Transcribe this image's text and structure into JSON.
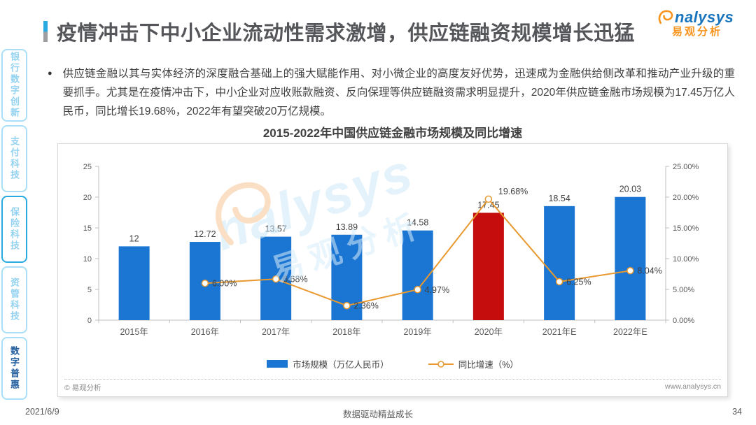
{
  "slide": {
    "title": "疫情冲击下中小企业流动性需求激增，供应链融资规模增长迅猛",
    "bullet": "●",
    "body_paragraph": "供应链金融以其与实体经济的深度融合基础上的强大赋能作用、对小微企业的高度友好优势，迅速成为金融供给侧改革和推动产业升级的重要抓手。尤其是在疫情冲击下，中小企业对应收账款融资、反向保理等供应链融资需求明显提升，2020年供应链金融市场规模为17.45万亿人民币，同比增长19.68%，2022年有望突破20万亿规模。"
  },
  "logo": {
    "brand": "nalysys",
    "brand_cn": "易观分析"
  },
  "sidebar": {
    "items": [
      {
        "id": "bank-digital-innovation",
        "label": "银行数字创新",
        "active": false,
        "emphasis": false
      },
      {
        "id": "payment-tech",
        "label": "支付科技",
        "active": false,
        "emphasis": false
      },
      {
        "id": "insurance-tech",
        "label": "保险科技",
        "active": false,
        "emphasis": true
      },
      {
        "id": "asset-mgmt-tech",
        "label": "资管科技",
        "active": false,
        "emphasis": false
      },
      {
        "id": "digital-inclusion",
        "label": "数字普惠",
        "active": true,
        "emphasis": false
      }
    ]
  },
  "chart_data": {
    "type": "bar",
    "title": "2015-2022年中国供应链金融市场规模及同比增速",
    "categories": [
      "2015年",
      "2016年",
      "2017年",
      "2018年",
      "2019年",
      "2020年",
      "2021年E",
      "2022年E"
    ],
    "series": [
      {
        "name": "市场规模（万亿人民币）",
        "type": "bar",
        "values": [
          12,
          12.72,
          13.57,
          13.89,
          14.58,
          17.45,
          18.54,
          20.03
        ],
        "labels": [
          "12",
          "12.72",
          "13.57",
          "13.89",
          "14.58",
          "17.45",
          "18.54",
          "20.03"
        ],
        "color": "#1b75d2",
        "highlight_index": 5,
        "highlight_color": "#c60d0d"
      },
      {
        "name": "同比增速（%）",
        "type": "line",
        "values": [
          null,
          6.0,
          6.68,
          2.36,
          4.97,
          19.68,
          6.25,
          8.04
        ],
        "labels": [
          null,
          "6.00%",
          "6.68%",
          "2.36%",
          "4.97%",
          "19.68%",
          "6.25%",
          "8.04%"
        ],
        "color": "#e8992f"
      }
    ],
    "left_axis": {
      "min": 0,
      "max": 25,
      "ticks": [
        "0",
        "5",
        "10",
        "15",
        "20",
        "25"
      ]
    },
    "right_axis": {
      "min": 0,
      "max": 25,
      "ticks": [
        "0.00%",
        "5.00%",
        "10.00%",
        "15.00%",
        "20.00%",
        "25.00%"
      ]
    },
    "legend_position": "bottom",
    "grid": false
  },
  "panel": {
    "copyright": "© 易观分析",
    "website": "www.analysys.cn"
  },
  "footer": {
    "date": "2021/6/9",
    "center": "数据驱动精益成长",
    "page": "34"
  },
  "colors": {
    "accent_blue": "#29abe2",
    "brand_blue": "#1a75bc",
    "brand_orange": "#f7941d",
    "sidebar_border": "#a9dff7",
    "sidebar_light_blue": "#93d2f0",
    "sidebar_active_blue": "#1f5c9e"
  }
}
